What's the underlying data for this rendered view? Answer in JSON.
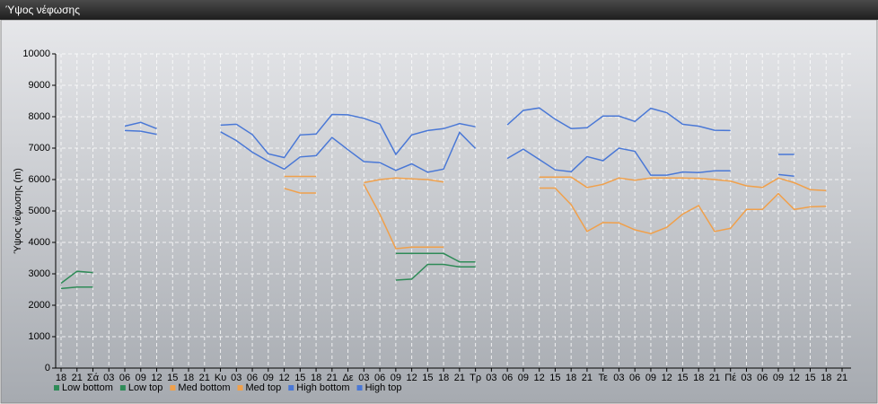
{
  "window": {
    "title": "Ύψος νέφωσης"
  },
  "chart_data": {
    "type": "line",
    "y_label": "Ύψος νέφωσης (m)",
    "categories": [
      "18",
      "21",
      "Σά",
      "03",
      "06",
      "09",
      "12",
      "15",
      "18",
      "21",
      "Κυ",
      "03",
      "06",
      "09",
      "12",
      "15",
      "18",
      "21",
      "Δε",
      "03",
      "06",
      "09",
      "12",
      "15",
      "18",
      "21",
      "Τρ",
      "03",
      "06",
      "09",
      "12",
      "15",
      "18",
      "21",
      "Τε",
      "03",
      "06",
      "09",
      "12",
      "15",
      "18",
      "21",
      "Πέ",
      "03",
      "06",
      "09",
      "12",
      "15",
      "18",
      "21"
    ],
    "ylim": [
      0,
      10000
    ],
    "yticks": [
      0,
      1000,
      2000,
      3000,
      4000,
      5000,
      6000,
      7000,
      8000,
      9000,
      10000
    ],
    "grid": true,
    "legend": "bottom-left",
    "series": [
      {
        "name": "Low bottom",
        "color": "#2e8b57",
        "values": [
          2530,
          2580,
          2580,
          null,
          null,
          null,
          null,
          null,
          null,
          null,
          null,
          null,
          null,
          null,
          null,
          null,
          null,
          null,
          null,
          null,
          null,
          2800,
          2830,
          3300,
          3300,
          3220,
          3220,
          null,
          null,
          null,
          null,
          null,
          null,
          null,
          null,
          null,
          null,
          null,
          null,
          null,
          null,
          null,
          null,
          null,
          null,
          null,
          null,
          null,
          null,
          null
        ]
      },
      {
        "name": "Low top",
        "color": "#2e8b57",
        "values": [
          2700,
          3080,
          3040,
          null,
          null,
          null,
          null,
          null,
          null,
          null,
          null,
          null,
          null,
          null,
          null,
          null,
          null,
          null,
          null,
          null,
          null,
          3650,
          3650,
          3650,
          3650,
          3380,
          3380,
          null,
          null,
          null,
          null,
          null,
          null,
          null,
          null,
          null,
          null,
          null,
          null,
          null,
          null,
          null,
          null,
          null,
          null,
          null,
          null,
          null,
          null,
          null
        ]
      },
      {
        "name": "Med bottom",
        "color": "#f0a04b",
        "values": [
          null,
          null,
          null,
          null,
          null,
          null,
          null,
          null,
          null,
          null,
          null,
          null,
          null,
          null,
          5720,
          5570,
          5570,
          null,
          null,
          5850,
          4900,
          3800,
          3850,
          3850,
          3850,
          null,
          null,
          null,
          null,
          null,
          5730,
          5730,
          5200,
          4350,
          4630,
          4620,
          4400,
          4280,
          4480,
          4900,
          5170,
          4350,
          4450,
          5050,
          5050,
          5550,
          5050,
          5130,
          5150,
          null
        ]
      },
      {
        "name": "Med top",
        "color": "#f0a04b",
        "values": [
          null,
          null,
          null,
          null,
          null,
          null,
          null,
          null,
          null,
          null,
          null,
          null,
          null,
          null,
          6100,
          6100,
          6100,
          null,
          null,
          5900,
          6000,
          6050,
          6020,
          6000,
          5920,
          null,
          null,
          null,
          null,
          null,
          6080,
          6080,
          6080,
          5750,
          5850,
          6050,
          5980,
          6050,
          6050,
          6050,
          6040,
          6000,
          5950,
          5800,
          5750,
          6050,
          5900,
          5680,
          5650,
          null
        ]
      },
      {
        "name": "High bottom",
        "color": "#4a78d6",
        "values": [
          null,
          null,
          null,
          null,
          7560,
          7540,
          7440,
          null,
          null,
          null,
          7520,
          7240,
          6870,
          6580,
          6330,
          6720,
          6760,
          7340,
          6950,
          6570,
          6540,
          6290,
          6500,
          6230,
          6330,
          7500,
          6990,
          null,
          6670,
          6970,
          6640,
          6310,
          6250,
          6730,
          6600,
          7000,
          6900,
          6140,
          6140,
          6240,
          6220,
          6280,
          6280,
          null,
          null,
          6160,
          6110,
          null,
          null,
          null
        ]
      },
      {
        "name": "High top",
        "color": "#4a78d6",
        "values": [
          null,
          null,
          null,
          null,
          7700,
          7820,
          7620,
          null,
          null,
          null,
          7730,
          7760,
          7430,
          6820,
          6700,
          7420,
          7450,
          8070,
          8060,
          7950,
          7770,
          6800,
          7420,
          7560,
          7620,
          7780,
          7680,
          null,
          7740,
          8200,
          8280,
          7920,
          7620,
          7650,
          8020,
          8020,
          7850,
          8270,
          8130,
          7760,
          7700,
          7570,
          7560,
          null,
          null,
          6800,
          6800,
          null,
          null,
          null
        ]
      }
    ]
  }
}
